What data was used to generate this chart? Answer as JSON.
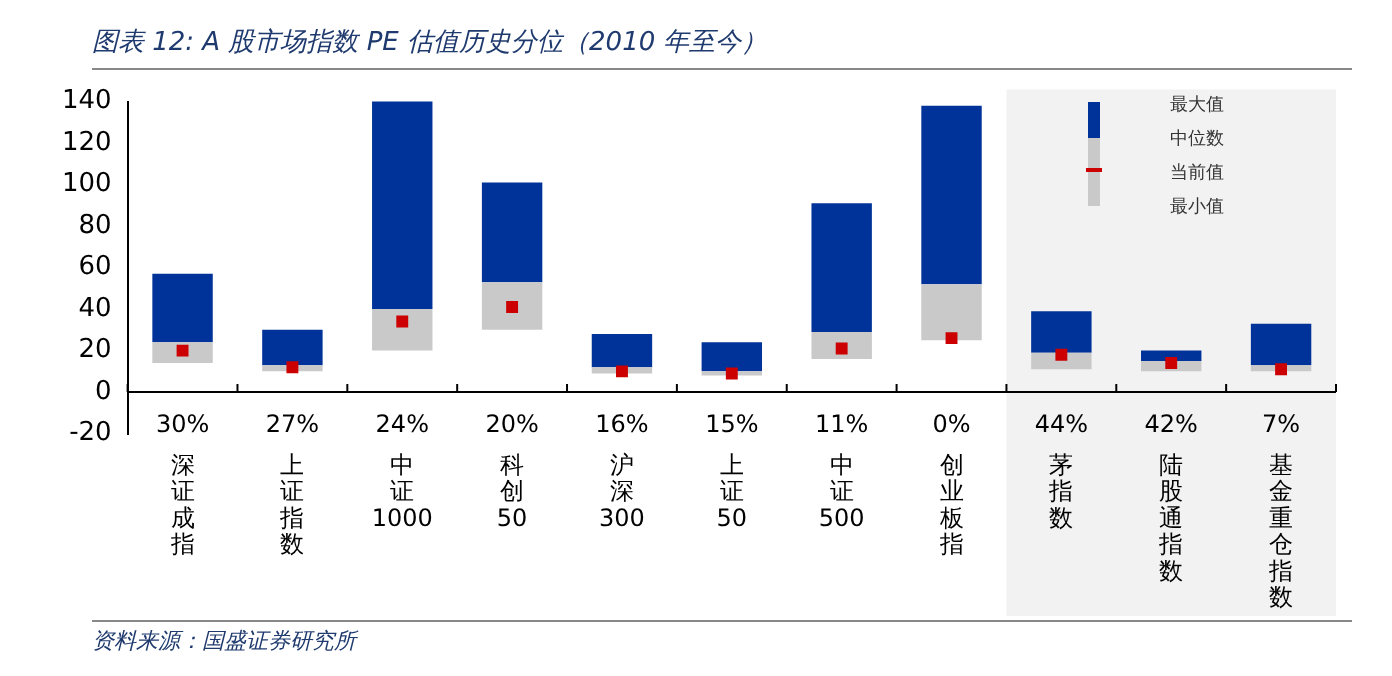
{
  "chart_data": {
    "type": "bar",
    "title": "图表 12: A 股市场指数 PE 估值历史分位（2010 年至今）",
    "categories": [
      "深证成指",
      "上证指数",
      "中证1000",
      "科创50",
      "沪深300",
      "上证50",
      "中证500",
      "创业板指",
      "茅指数",
      "陆股通指数",
      "基金重仓指数"
    ],
    "stacked": true,
    "series": [
      {
        "color": "#c9c9c9",
        "base": [
          14,
          10,
          20,
          30,
          9,
          8,
          16,
          25,
          11,
          10,
          10
        ],
        "values": [
          10,
          3,
          20,
          23,
          3,
          2,
          13,
          27,
          8,
          5,
          3
        ]
      },
      {
        "color": "#003399",
        "values": [
          33,
          17,
          101,
          48,
          16,
          14,
          62,
          86,
          20,
          5,
          20
        ]
      },
      {
        "type": "scatter",
        "marker": "square",
        "color": "#cc0000",
        "values": [
          20,
          12,
          34,
          41,
          10,
          9,
          21,
          26,
          18,
          14,
          11
        ]
      }
    ],
    "ylim": [
      -20,
      140
    ],
    "yticks": [
      -20,
      0,
      20,
      40,
      60,
      80,
      100,
      120,
      140
    ],
    "bands": [
      {
        "axis": "x",
        "from": "茅指数",
        "to": "基金重仓指数",
        "color": "#f2f2f2"
      }
    ],
    "annotations": [
      "最大值",
      "中位数",
      "当前值",
      "最小值",
      "30%",
      "27%",
      "24%",
      "20%",
      "16%",
      "15%",
      "11%",
      "0%",
      "44%",
      "42%",
      "7%",
      "资料来源：国盛证券研究所"
    ]
  }
}
